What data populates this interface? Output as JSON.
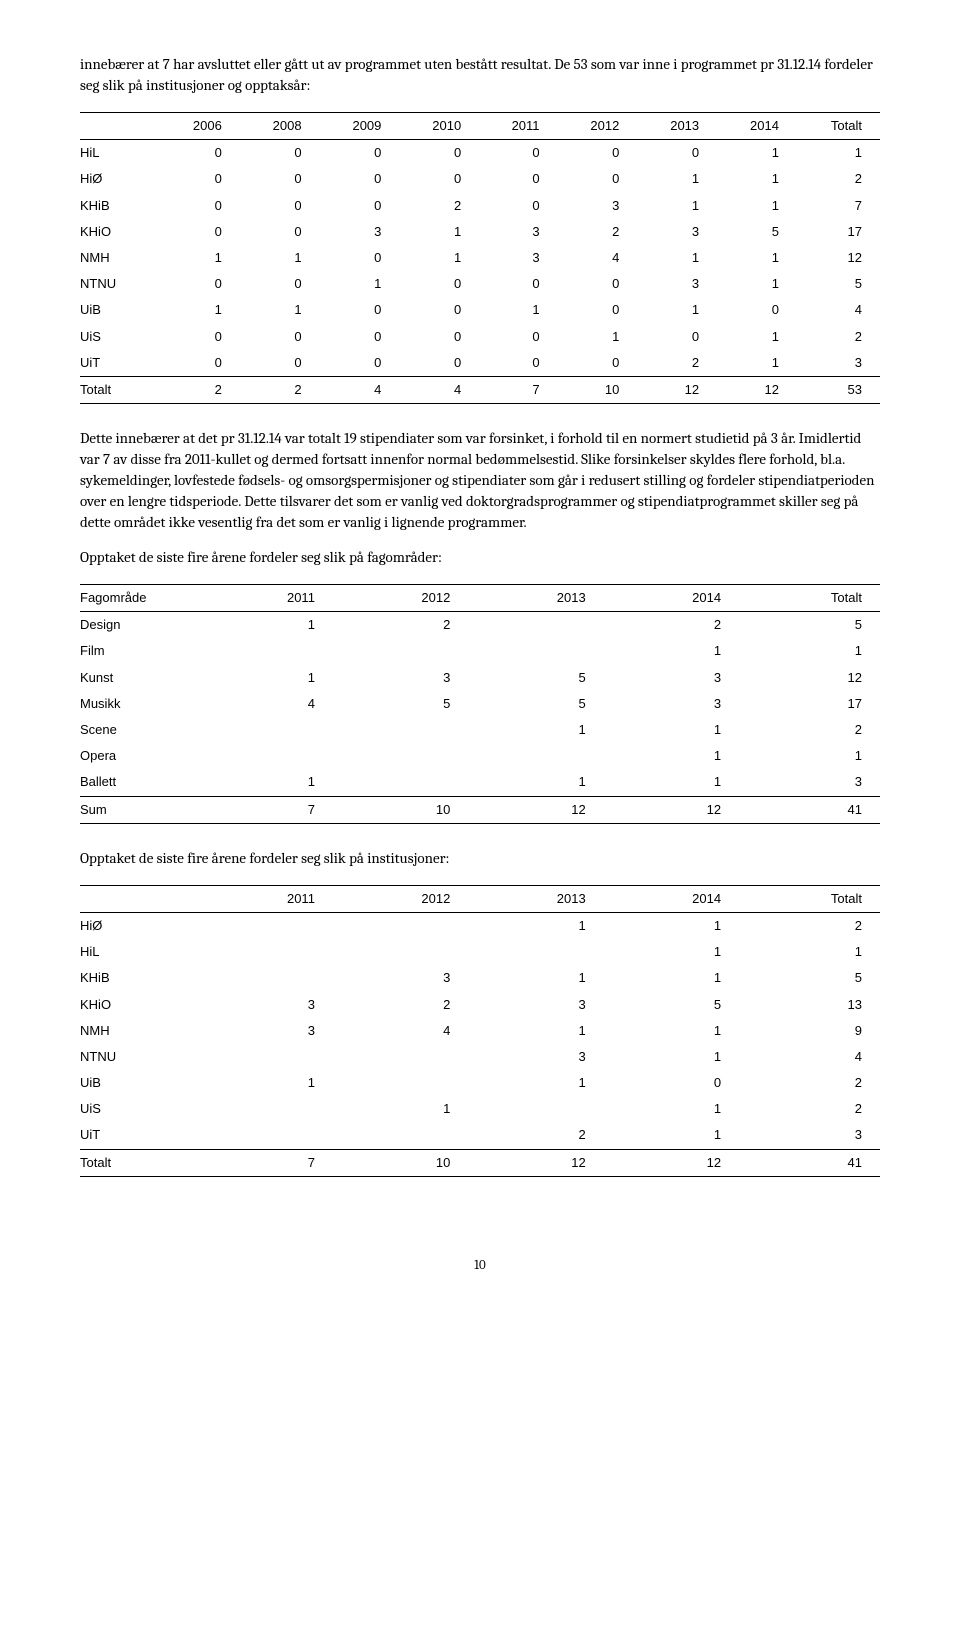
{
  "para1": "innebærer at 7 har avsluttet eller gått ut av programmet uten bestått resultat. De 53 som var inne i programmet pr 31.12.14 fordeler seg slik på institusjoner og opptaksår:",
  "table1": {
    "columns": [
      "",
      "2006",
      "2008",
      "2009",
      "2010",
      "2011",
      "2012",
      "2013",
      "2014",
      "Totalt"
    ],
    "rows": [
      [
        "HiL",
        "0",
        "0",
        "0",
        "0",
        "0",
        "0",
        "0",
        "1",
        "1"
      ],
      [
        "HiØ",
        "0",
        "0",
        "0",
        "0",
        "0",
        "0",
        "1",
        "1",
        "2"
      ],
      [
        "KHiB",
        "0",
        "0",
        "0",
        "2",
        "0",
        "3",
        "1",
        "1",
        "7"
      ],
      [
        "KHiO",
        "0",
        "0",
        "3",
        "1",
        "3",
        "2",
        "3",
        "5",
        "17"
      ],
      [
        "NMH",
        "1",
        "1",
        "0",
        "1",
        "3",
        "4",
        "1",
        "1",
        "12"
      ],
      [
        "NTNU",
        "0",
        "0",
        "1",
        "0",
        "0",
        "0",
        "3",
        "1",
        "5"
      ],
      [
        "UiB",
        "1",
        "1",
        "0",
        "0",
        "1",
        "0",
        "1",
        "0",
        "4"
      ],
      [
        "UiS",
        "0",
        "0",
        "0",
        "0",
        "0",
        "1",
        "0",
        "1",
        "2"
      ],
      [
        "UiT",
        "0",
        "0",
        "0",
        "0",
        "0",
        "0",
        "2",
        "1",
        "3"
      ]
    ],
    "totals": [
      "Totalt",
      "2",
      "2",
      "4",
      "4",
      "7",
      "10",
      "12",
      "12",
      "53"
    ]
  },
  "para2": "Dette innebærer at det pr 31.12.14 var totalt 19 stipendiater som var forsinket, i forhold til en normert studietid på 3 år. Imidlertid var 7 av disse fra 2011-kullet og dermed fortsatt innenfor normal bedømmelsestid. Slike forsinkelser skyldes flere forhold, bl.a. sykemeldinger, lovfestede fødsels- og omsorgspermisjoner og stipendiater som går i redusert stilling og fordeler stipendiatperioden over en lengre tidsperiode. Dette tilsvarer det som er vanlig ved doktorgradsprogrammer og stipendiatprogrammet skiller seg på dette området ikke vesentlig fra det som er vanlig i lignende programmer.",
  "para3": "Opptaket de siste fire årene fordeler seg slik på fagområder:",
  "table2": {
    "columns": [
      "Fagområde",
      "2011",
      "2012",
      "2013",
      "2014",
      "Totalt"
    ],
    "rows": [
      [
        "Design",
        "1",
        "2",
        "",
        "2",
        "5"
      ],
      [
        "Film",
        "",
        "",
        "",
        "1",
        "1"
      ],
      [
        "Kunst",
        "1",
        "3",
        "5",
        "3",
        "12"
      ],
      [
        "Musikk",
        "4",
        "5",
        "5",
        "3",
        "17"
      ],
      [
        "Scene",
        "",
        "",
        "1",
        "1",
        "2"
      ],
      [
        "Opera",
        "",
        "",
        "",
        "1",
        "1"
      ],
      [
        "Ballett",
        "1",
        "",
        "1",
        "1",
        "3"
      ]
    ],
    "totals": [
      "Sum",
      "7",
      "10",
      "12",
      "12",
      "41"
    ]
  },
  "para4": "Opptaket de siste fire årene fordeler seg slik på institusjoner:",
  "table3": {
    "columns": [
      "",
      "2011",
      "2012",
      "2013",
      "2014",
      "Totalt"
    ],
    "rows": [
      [
        "HiØ",
        "",
        "",
        "1",
        "1",
        "2"
      ],
      [
        "HiL",
        "",
        "",
        "",
        "1",
        "1"
      ],
      [
        "KHiB",
        "",
        "3",
        "1",
        "1",
        "5"
      ],
      [
        "KHiO",
        "3",
        "2",
        "3",
        "5",
        "13"
      ],
      [
        "NMH",
        "3",
        "4",
        "1",
        "1",
        "9"
      ],
      [
        "NTNU",
        "",
        "",
        "3",
        "1",
        "4"
      ],
      [
        "UiB",
        "1",
        "",
        "1",
        "0",
        "2"
      ],
      [
        "UiS",
        "",
        "1",
        "",
        "1",
        "2"
      ],
      [
        "UiT",
        "",
        "",
        "2",
        "1",
        "3"
      ]
    ],
    "totals": [
      "Totalt",
      "7",
      "10",
      "12",
      "12",
      "41"
    ]
  },
  "page_number": "10"
}
